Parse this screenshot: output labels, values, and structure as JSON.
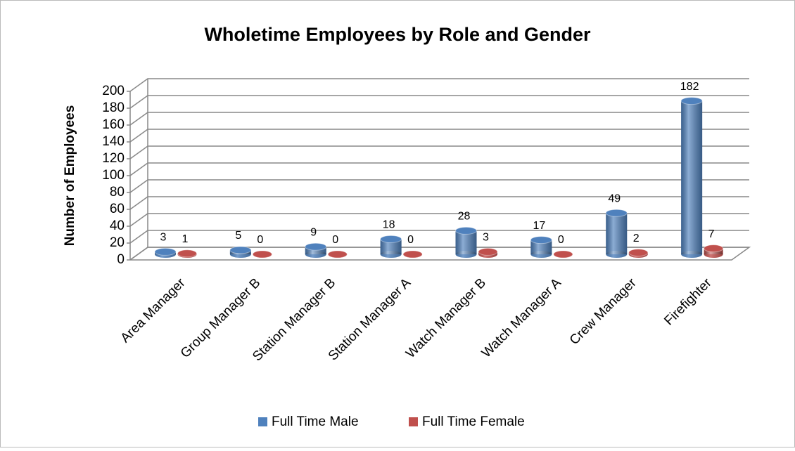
{
  "chart_data": {
    "type": "bar3d",
    "title": "Wholetime Employees by Role and Gender",
    "y_label": "Number of Employees",
    "categories": [
      "Area Manager",
      "Group Manager B",
      "Station Manager B",
      "Station Manager A",
      "Watch Manager B",
      "Watch Manager A",
      "Crew Manager",
      "Firefighter"
    ],
    "series": [
      {
        "name": "Full Time Male",
        "color": "#4f81bd",
        "values": [
          3,
          5,
          9,
          18,
          28,
          17,
          49,
          182
        ]
      },
      {
        "name": "Full Time Female",
        "color": "#c0504d",
        "values": [
          1,
          0,
          0,
          0,
          3,
          0,
          2,
          7
        ]
      }
    ],
    "ylim": [
      0,
      200
    ],
    "yticks": [
      0,
      20,
      40,
      60,
      80,
      100,
      120,
      140,
      160,
      180,
      200
    ],
    "grid": true,
    "legend": "bottom"
  }
}
